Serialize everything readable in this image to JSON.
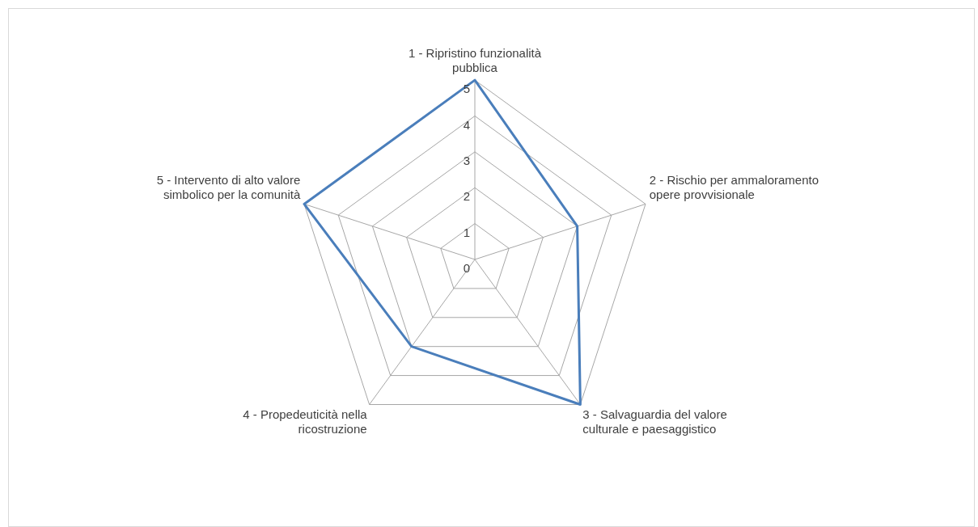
{
  "chart_data": {
    "type": "radar",
    "categories": [
      "1 - Ripristino funzionalità pubblica",
      "2 - Rischio per ammaloramento opere provvisionale",
      "3 - Salvaguardia del valore culturale e paesaggistico",
      "4 - Propedeuticità nella ricostruzione",
      "5 - Intervento di alto valore simbolico per la comunità"
    ],
    "series": [
      {
        "color": "#4a7ebb",
        "values": [
          5,
          3,
          5,
          3,
          5
        ]
      }
    ],
    "ylim": [
      0,
      5
    ],
    "yticks": [
      0,
      1,
      2,
      3,
      4,
      5
    ],
    "grid": true,
    "legend": false,
    "marker": "none",
    "line_style": "solid"
  }
}
